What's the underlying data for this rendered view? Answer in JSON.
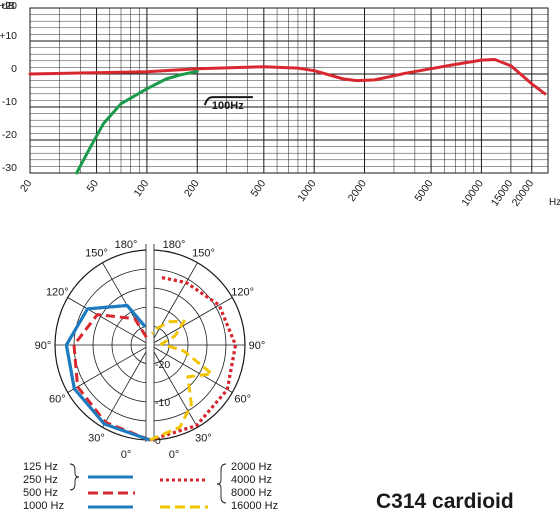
{
  "chart_data": [
    {
      "type": "line",
      "title": "",
      "ylabel": "dB",
      "xlabel": "Hz",
      "x_scale": "log",
      "xlim": [
        20,
        25000
      ],
      "ylim": [
        -30,
        20
      ],
      "y_ticks": [
        "+20",
        "+10",
        "0",
        "-10",
        "-20",
        "-30"
      ],
      "x_ticks": [
        "20",
        "50",
        "100",
        "200",
        "500",
        "1000",
        "2000",
        "5000",
        "10000",
        "15000",
        "20000"
      ],
      "annotation": "100Hz",
      "series": [
        {
          "color": "#d7282f",
          "x": [
            20,
            40,
            100,
            200,
            500,
            800,
            1000,
            1500,
            1800,
            2300,
            3500,
            5000,
            7000,
            10000,
            12000,
            15000,
            20000,
            24000
          ],
          "y": [
            0,
            0.3,
            0.7,
            1.6,
            2.2,
            1.8,
            1.0,
            -1.5,
            -2.0,
            -1.8,
            0.2,
            1.6,
            2.9,
            4.2,
            4.4,
            2.5,
            -3.0,
            -6.0
          ]
        },
        {
          "color": "#1a9a4a",
          "x": [
            38,
            45,
            55,
            70,
            100,
            130,
            160,
            200
          ],
          "y": [
            -30,
            -23,
            -15,
            -9,
            -4.5,
            -1.5,
            -0.2,
            0.8
          ]
        }
      ]
    },
    {
      "type": "polar",
      "radial_labels": [
        "0",
        "-10",
        "-20"
      ],
      "angle_labels": [
        "0°",
        "30°",
        "60°",
        "90°",
        "120°",
        "150°",
        "180°"
      ],
      "series": [
        {
          "name": "125 Hz",
          "group": "low",
          "color": "#1f7bc0",
          "style": "solid",
          "theta": [
            0,
            30,
            60,
            90,
            120,
            150,
            165
          ],
          "r_db": [
            0,
            -1,
            -2,
            -3,
            -6,
            -13,
            -20
          ]
        },
        {
          "name": "250 Hz",
          "group": "low",
          "color": "#1f7bc0",
          "style": "solid",
          "theta": [
            0,
            30,
            60,
            90,
            120,
            150,
            165
          ],
          "r_db": [
            0,
            -1,
            -2,
            -3,
            -6,
            -13,
            -20
          ]
        },
        {
          "name": "500 Hz",
          "group": "low",
          "color": "#d7282f",
          "style": "dash",
          "theta": [
            0,
            30,
            60,
            90,
            120,
            150,
            165
          ],
          "r_db": [
            0,
            -1.5,
            -3,
            -5,
            -9,
            -17,
            -24
          ]
        },
        {
          "name": "1000 Hz",
          "group": "low",
          "color": "#1f7bc0",
          "style": "solid",
          "theta": [
            0,
            30,
            60,
            90,
            120,
            150,
            165
          ],
          "r_db": [
            0,
            -1,
            -2,
            -3,
            -6,
            -13,
            -20
          ]
        },
        {
          "name": "2000 Hz",
          "group": "high",
          "color": "#d7282f",
          "style": "dot",
          "theta": [
            0,
            30,
            60,
            90,
            120,
            150,
            170
          ],
          "r_db": [
            0,
            -0.5,
            -1.5,
            -2.5,
            -4,
            -6,
            -7
          ]
        },
        {
          "name": "4000 Hz",
          "group": "high",
          "color": "#d7282f",
          "style": "dot",
          "theta": [
            0,
            30,
            60,
            90,
            120,
            150,
            170
          ],
          "r_db": [
            0,
            -0.5,
            -1.5,
            -2.5,
            -4,
            -6,
            -7
          ]
        },
        {
          "name": "8000 Hz",
          "group": "high",
          "color": "#d7282f",
          "style": "dot",
          "theta": [
            0,
            30,
            60,
            90,
            120,
            150,
            170
          ],
          "r_db": [
            0,
            -0.5,
            -1.5,
            -2.5,
            -4,
            -6,
            -7
          ]
        },
        {
          "name": "16000 Hz",
          "group": "high",
          "color": "#f2c400",
          "style": "dash",
          "theta": [
            0,
            20,
            35,
            50,
            65,
            80,
            95,
            110,
            125,
            140,
            155,
            170
          ],
          "r_db": [
            0,
            -2,
            -6,
            -12,
            -7,
            -16,
            -22,
            -18,
            -14,
            -17,
            -20,
            -22
          ]
        }
      ]
    }
  ],
  "legend_left": [
    "125 Hz",
    "250 Hz",
    "500 Hz",
    "1000 Hz"
  ],
  "legend_right": [
    "2000 Hz",
    "4000 Hz",
    "8000 Hz",
    "16000 Hz"
  ],
  "model_title": "C314 cardioid"
}
